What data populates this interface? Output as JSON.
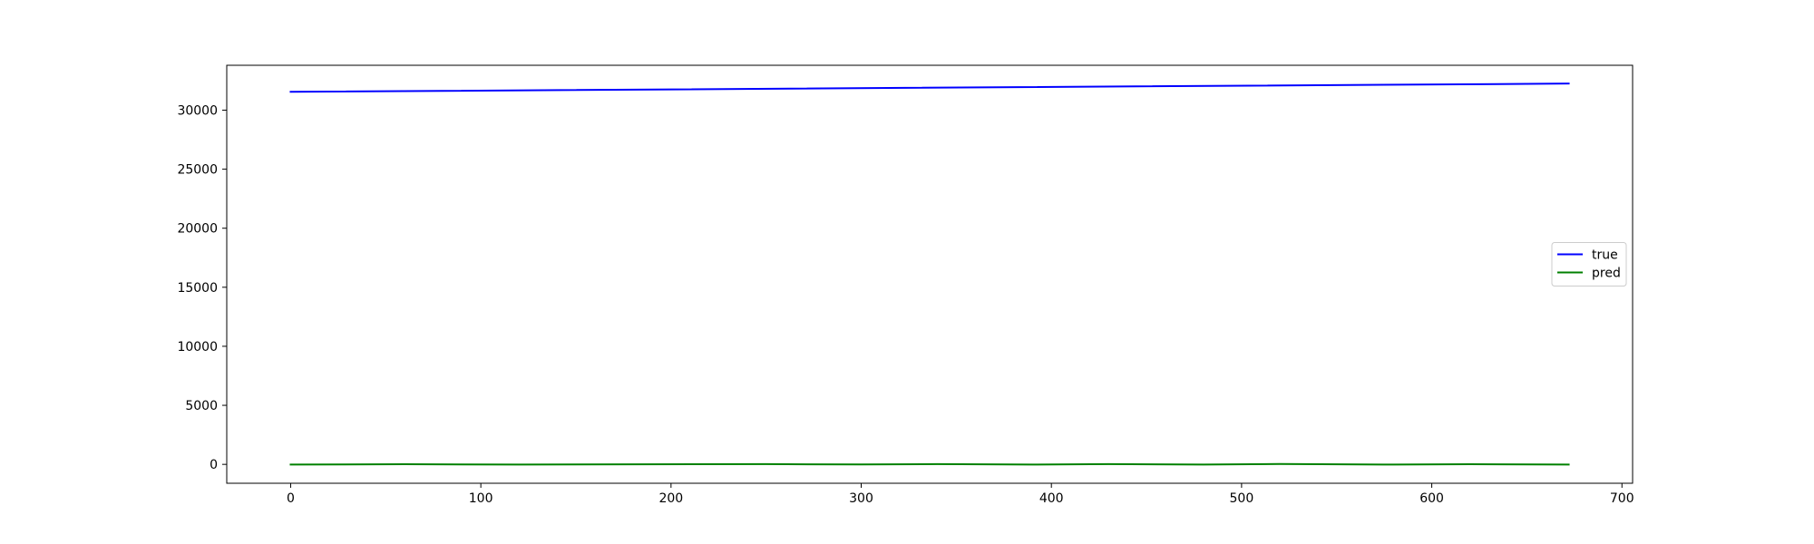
{
  "chart_data": {
    "type": "line",
    "title": "",
    "xlabel": "",
    "ylabel": "",
    "xlim": [
      -33.6,
      705.6
    ],
    "ylim": [
      -1600,
      33800
    ],
    "xticks": [
      0,
      100,
      200,
      300,
      400,
      500,
      600,
      700
    ],
    "yticks": [
      0,
      5000,
      10000,
      15000,
      20000,
      25000,
      30000
    ],
    "grid": false,
    "legend": {
      "position": "center-right"
    },
    "series": [
      {
        "name": "true",
        "color": "#0000ff",
        "x": [
          0,
          672
        ],
        "y": [
          31550,
          32250
        ]
      },
      {
        "name": "pred",
        "color": "#008000",
        "x": [
          0,
          60,
          120,
          180,
          250,
          300,
          340,
          390,
          430,
          480,
          520,
          580,
          620,
          672
        ],
        "y": [
          -20,
          10,
          -20,
          0,
          20,
          -10,
          20,
          -20,
          20,
          -20,
          30,
          -20,
          10,
          -20
        ]
      }
    ]
  }
}
